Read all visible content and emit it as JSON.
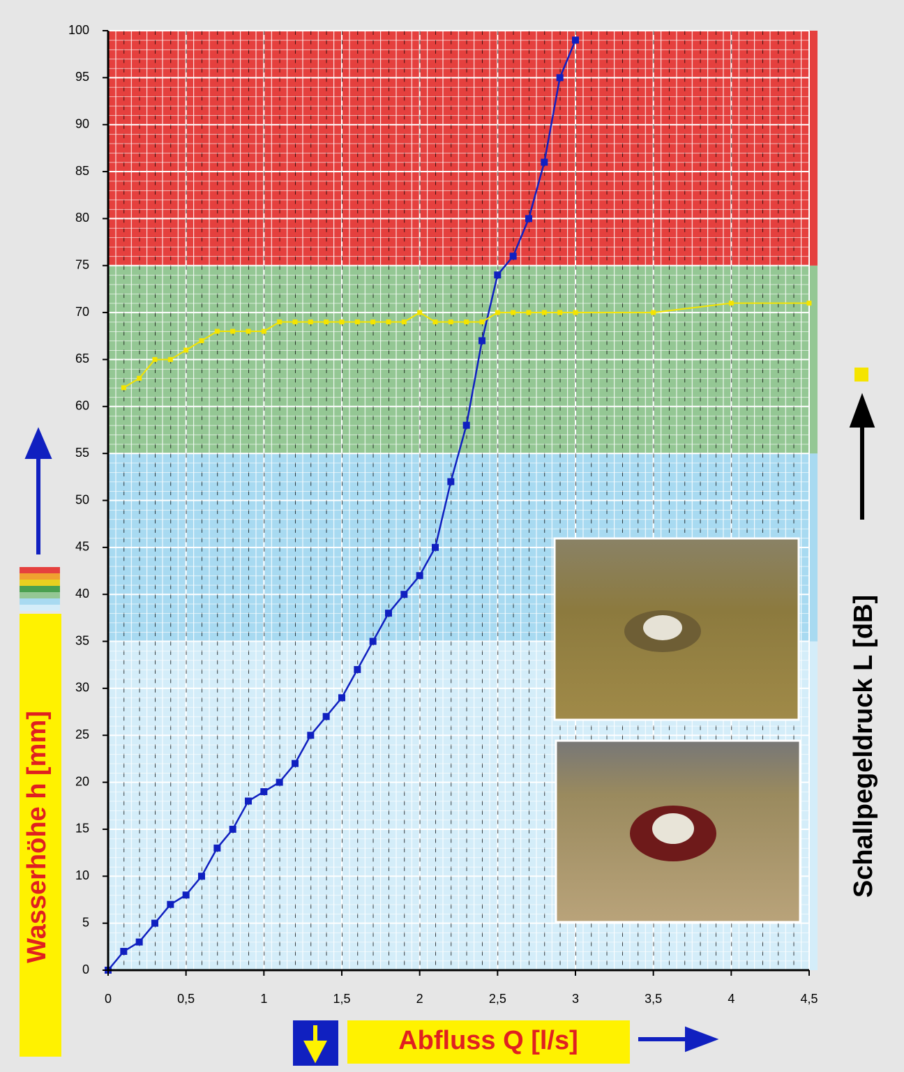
{
  "chart_data": {
    "type": "line",
    "x_label": "Abfluss Q [l/s]",
    "y_label": "Wasserhöhe h [mm]",
    "y2_label": "Schallpegeldruck L [dB]",
    "xlim": [
      0,
      4.5
    ],
    "ylim": [
      0,
      100
    ],
    "xticks": [
      0,
      {
        "value": 0.5,
        "label": "0,5"
      },
      1,
      {
        "value": 1.5,
        "label": "1,5"
      },
      2,
      {
        "value": 2.5,
        "label": "2,5"
      },
      3,
      {
        "value": 3.5,
        "label": "3,5"
      },
      4,
      {
        "value": 4.5,
        "label": "4,5"
      }
    ],
    "yticks": [
      0,
      5,
      10,
      15,
      20,
      25,
      30,
      35,
      40,
      45,
      50,
      55,
      60,
      65,
      70,
      75,
      80,
      85,
      90,
      95,
      100
    ],
    "grid": true,
    "bands": [
      {
        "from": 0,
        "to": 35,
        "color": "#d4edf9"
      },
      {
        "from": 35,
        "to": 55,
        "color": "#a8daf1"
      },
      {
        "from": 55,
        "to": 75,
        "color": "#94c794"
      },
      {
        "from": 75,
        "to": 100,
        "color": "#e5403e"
      }
    ],
    "series": [
      {
        "color": "#1020c0",
        "x": [
          0,
          0.1,
          0.2,
          0.3,
          0.4,
          0.5,
          0.6,
          0.7,
          0.8,
          0.9,
          1,
          1.1,
          1.2,
          1.3,
          1.4,
          1.5,
          1.6,
          1.7,
          1.8,
          1.9,
          2,
          2.1,
          2.2,
          2.3,
          2.4,
          2.5,
          2.6,
          2.7,
          2.8,
          2.9,
          3
        ],
        "values": [
          0,
          2,
          3,
          5,
          7,
          8,
          10,
          13,
          15,
          18,
          19,
          20,
          22,
          25,
          27,
          29,
          32,
          35,
          38,
          40,
          42,
          45,
          52,
          58,
          67,
          74,
          76,
          80,
          86,
          95,
          99
        ]
      },
      {
        "color": "#f5e400",
        "x": [
          0.1,
          0.2,
          0.3,
          0.4,
          0.5,
          0.6,
          0.7,
          0.8,
          0.9,
          1,
          1.1,
          1.2,
          1.3,
          1.4,
          1.5,
          1.6,
          1.7,
          1.8,
          1.9,
          2,
          2.1,
          2.2,
          2.3,
          2.4,
          2.5,
          2.6,
          2.7,
          2.8,
          2.9,
          3,
          3.5,
          4,
          4.5
        ],
        "values": [
          62,
          63,
          65,
          65,
          66,
          67,
          68,
          68,
          68,
          68,
          69,
          69,
          69,
          69,
          69,
          69,
          69,
          69,
          69,
          70,
          69,
          69,
          69,
          69,
          70,
          70,
          70,
          70,
          70,
          70,
          70,
          71,
          71
        ]
      }
    ]
  }
}
